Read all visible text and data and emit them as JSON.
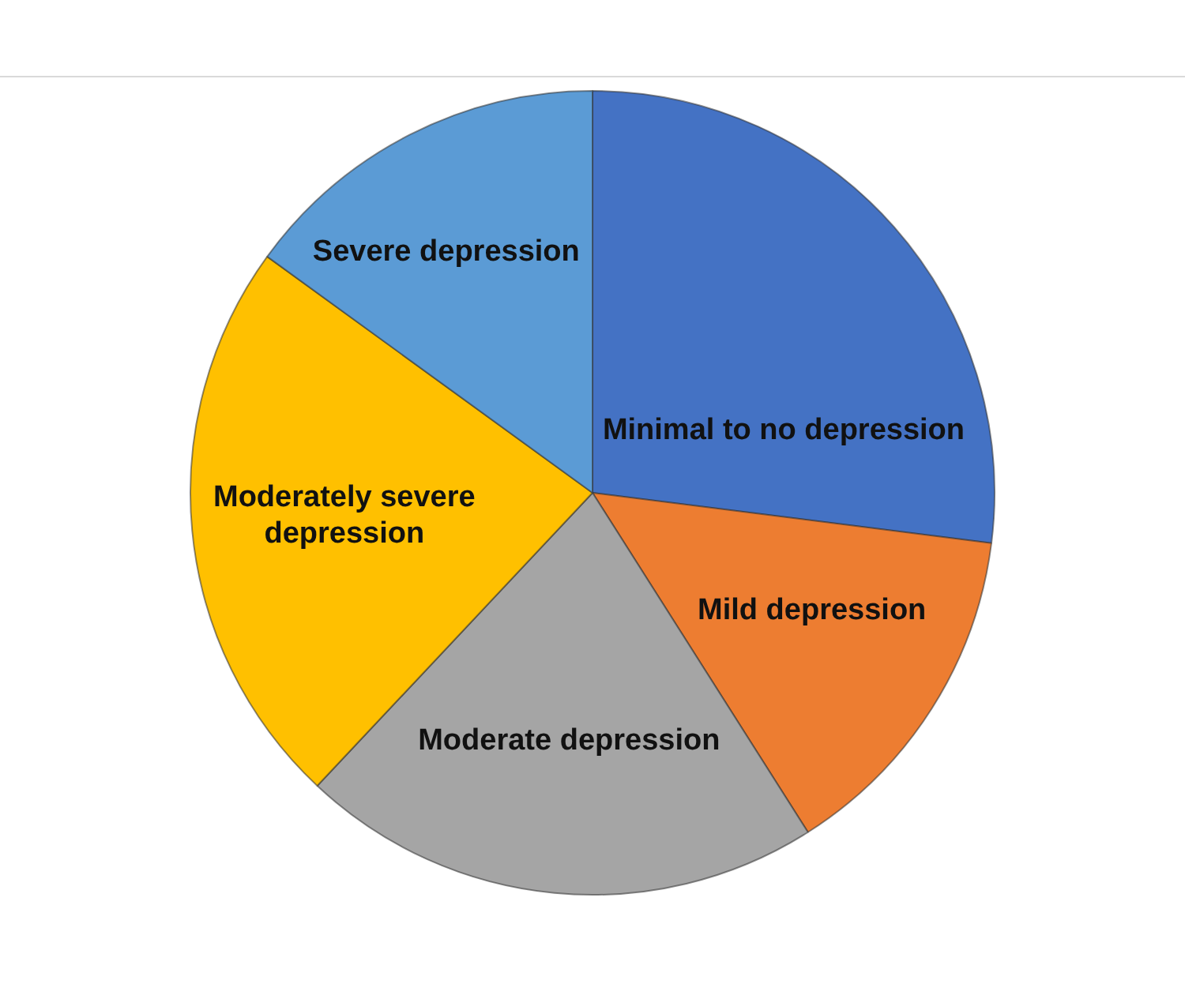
{
  "chart_data": {
    "type": "pie",
    "categories": [
      "Minimal to no depression",
      "Mild depression",
      "Moderate depression",
      "Moderately severe depression",
      "Severe depression"
    ],
    "values": [
      27,
      14,
      21,
      23,
      15
    ],
    "colors": [
      "#4472c4",
      "#ed7d31",
      "#a5a5a5",
      "#ffc000",
      "#5b9bd5"
    ],
    "legend": false
  }
}
